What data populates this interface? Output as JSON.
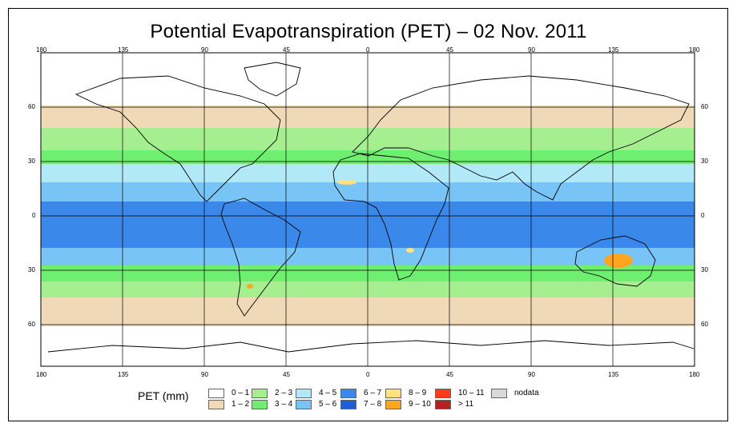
{
  "title": "Potential Evapotranspiration (PET) – 02 Nov. 2011",
  "axes": {
    "lon_labels": [
      "180",
      "135",
      "90",
      "45",
      "0",
      "45",
      "90",
      "135",
      "180"
    ],
    "lat_labels": [
      "60",
      "30",
      "0",
      "30",
      "60"
    ]
  },
  "legend": {
    "title": "PET (mm)",
    "items": [
      {
        "label": "0 – 1",
        "color": "#ffffff"
      },
      {
        "label": "1 – 2",
        "color": "#efd9b6"
      },
      {
        "label": "2 – 3",
        "color": "#a6ef90"
      },
      {
        "label": "3 – 4",
        "color": "#6fef6f"
      },
      {
        "label": "4 – 5",
        "color": "#b2e9f8"
      },
      {
        "label": "5 – 6",
        "color": "#79c4f6"
      },
      {
        "label": "6 – 7",
        "color": "#3a88ea"
      },
      {
        "label": "7 – 8",
        "color": "#1f5fd6"
      },
      {
        "label": "8 – 9",
        "color": "#ffe27f"
      },
      {
        "label": "9 – 10",
        "color": "#ffa51f"
      },
      {
        "label": "10 – 11",
        "color": "#ff3b1a"
      },
      {
        "label": "> 11",
        "color": "#b22222"
      },
      {
        "label": "nodata",
        "color": "#d9d9d9"
      }
    ]
  }
}
